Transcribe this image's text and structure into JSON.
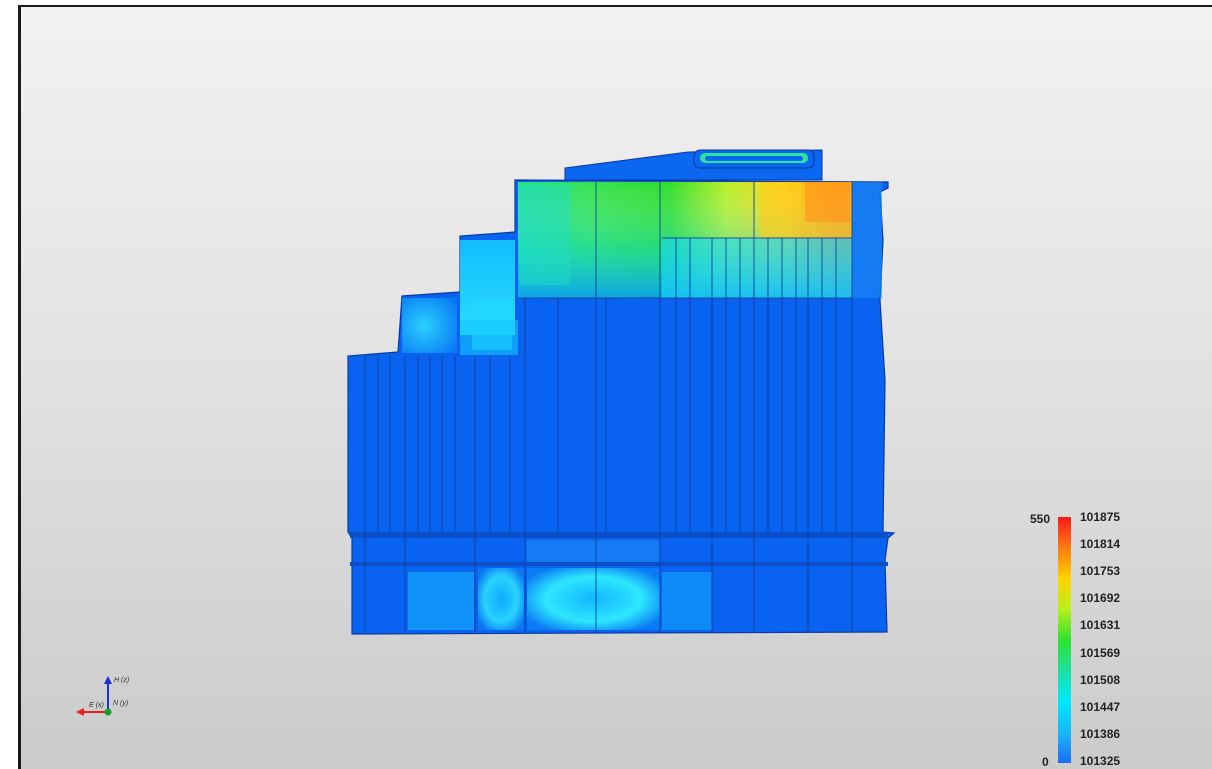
{
  "legend": {
    "range_max": "550",
    "range_min": "0",
    "values": [
      "101875",
      "101814",
      "101753",
      "101692",
      "101631",
      "101569",
      "101508",
      "101447",
      "101386",
      "101325"
    ],
    "gradient_colors": [
      "#ff1a1a",
      "#ff7a10",
      "#ffd400",
      "#b8ee20",
      "#2ee22e",
      "#1ee0a0",
      "#00e8ff",
      "#1ab8ff",
      "#1a6cf5"
    ]
  },
  "axis_triad": {
    "up_label": "H (z)",
    "east_label": "E (x)",
    "north_label": "N (y)",
    "colors": {
      "up": "#1a2fd6",
      "east": "#e0201a",
      "north": "#1a9a2a"
    }
  },
  "model": {
    "base_color": "#0a62f0",
    "edge_color": "#0a3a9a"
  }
}
